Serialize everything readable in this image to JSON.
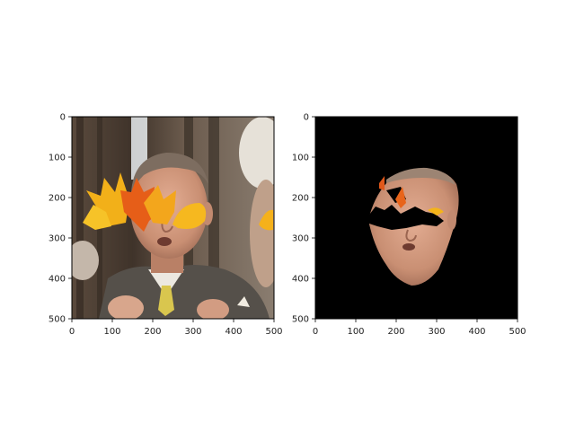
{
  "figure": {
    "panels": [
      {
        "name": "original-image-panel",
        "content": "photo",
        "x_ticks": [
          "0",
          "100",
          "200",
          "300",
          "400",
          "500"
        ],
        "y_ticks": [
          "0",
          "100",
          "200",
          "300",
          "400",
          "500"
        ],
        "x_range": [
          0,
          500
        ],
        "y_range": [
          0,
          500
        ]
      },
      {
        "name": "masked-face-panel",
        "content": "mask",
        "x_ticks": [
          "0",
          "100",
          "200",
          "300",
          "400",
          "500"
        ],
        "y_ticks": [
          "0",
          "100",
          "200",
          "300",
          "400",
          "500"
        ],
        "x_range": [
          0,
          500
        ],
        "y_range": [
          0,
          500
        ]
      }
    ]
  },
  "colors": {
    "skin": "#d9a185",
    "skin_shadow": "#a86f57",
    "hair": "#7a6a5c",
    "suit": "#5b564f",
    "shirt": "#e9e6df",
    "tie": "#d6c24a",
    "bg_dark": "#4d3f34",
    "bg_light": "#c9c1b4",
    "leaf_yellow": "#f4b41a",
    "leaf_orange": "#e8641a",
    "mask_bg": "#000000"
  }
}
